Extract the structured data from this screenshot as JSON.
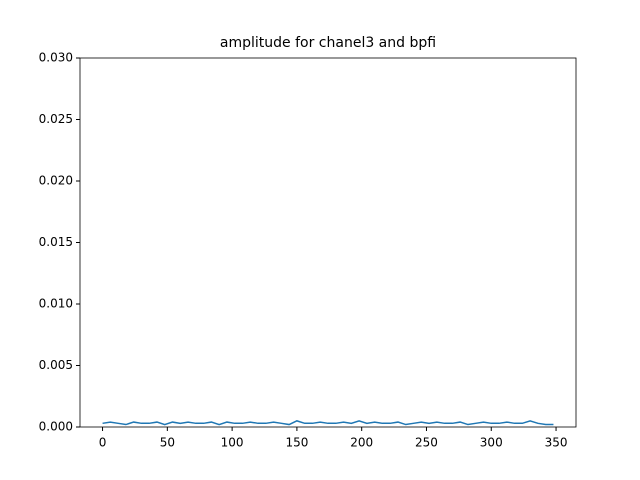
{
  "chart_data": {
    "type": "line",
    "title": "amplitude for chanel3 and bpfi",
    "x": [
      0,
      6,
      12,
      18,
      24,
      30,
      36,
      42,
      48,
      54,
      60,
      66,
      72,
      78,
      84,
      90,
      96,
      102,
      108,
      114,
      120,
      126,
      132,
      138,
      144,
      150,
      156,
      162,
      168,
      174,
      180,
      186,
      192,
      198,
      204,
      210,
      216,
      222,
      228,
      234,
      240,
      246,
      252,
      258,
      264,
      270,
      276,
      282,
      288,
      294,
      300,
      306,
      312,
      318,
      324,
      330,
      336,
      342,
      348
    ],
    "values": [
      0.0003,
      0.0004,
      0.0003,
      0.0002,
      0.0004,
      0.0003,
      0.0003,
      0.0004,
      0.0002,
      0.0004,
      0.0003,
      0.0004,
      0.0003,
      0.0003,
      0.0004,
      0.0002,
      0.0004,
      0.0003,
      0.0003,
      0.0004,
      0.0003,
      0.0003,
      0.0004,
      0.0003,
      0.0002,
      0.0005,
      0.0003,
      0.0003,
      0.0004,
      0.0003,
      0.0003,
      0.0004,
      0.0003,
      0.0005,
      0.0003,
      0.0004,
      0.0003,
      0.0003,
      0.0004,
      0.0002,
      0.0003,
      0.0004,
      0.0003,
      0.0004,
      0.0003,
      0.0003,
      0.0004,
      0.0002,
      0.0003,
      0.0004,
      0.0003,
      0.0003,
      0.0004,
      0.0003,
      0.0003,
      0.0005,
      0.0003,
      0.0002,
      0.0002
    ],
    "color": "#1f77b4",
    "xlim": [
      -17.4,
      365.4
    ],
    "xticks": [
      0,
      50,
      100,
      150,
      200,
      250,
      300,
      350
    ],
    "ylim": [
      0,
      0.03
    ],
    "yticks": [
      {
        "value": 0,
        "label": "0.000"
      },
      {
        "value": 0.005,
        "label": "0.005"
      },
      {
        "value": 0.01,
        "label": "0.010"
      },
      {
        "value": 0.015,
        "label": "0.015"
      },
      {
        "value": 0.02,
        "label": "0.020"
      },
      {
        "value": 0.025,
        "label": "0.025"
      },
      {
        "value": 0.03,
        "label": "0.030"
      }
    ],
    "grid": false
  }
}
